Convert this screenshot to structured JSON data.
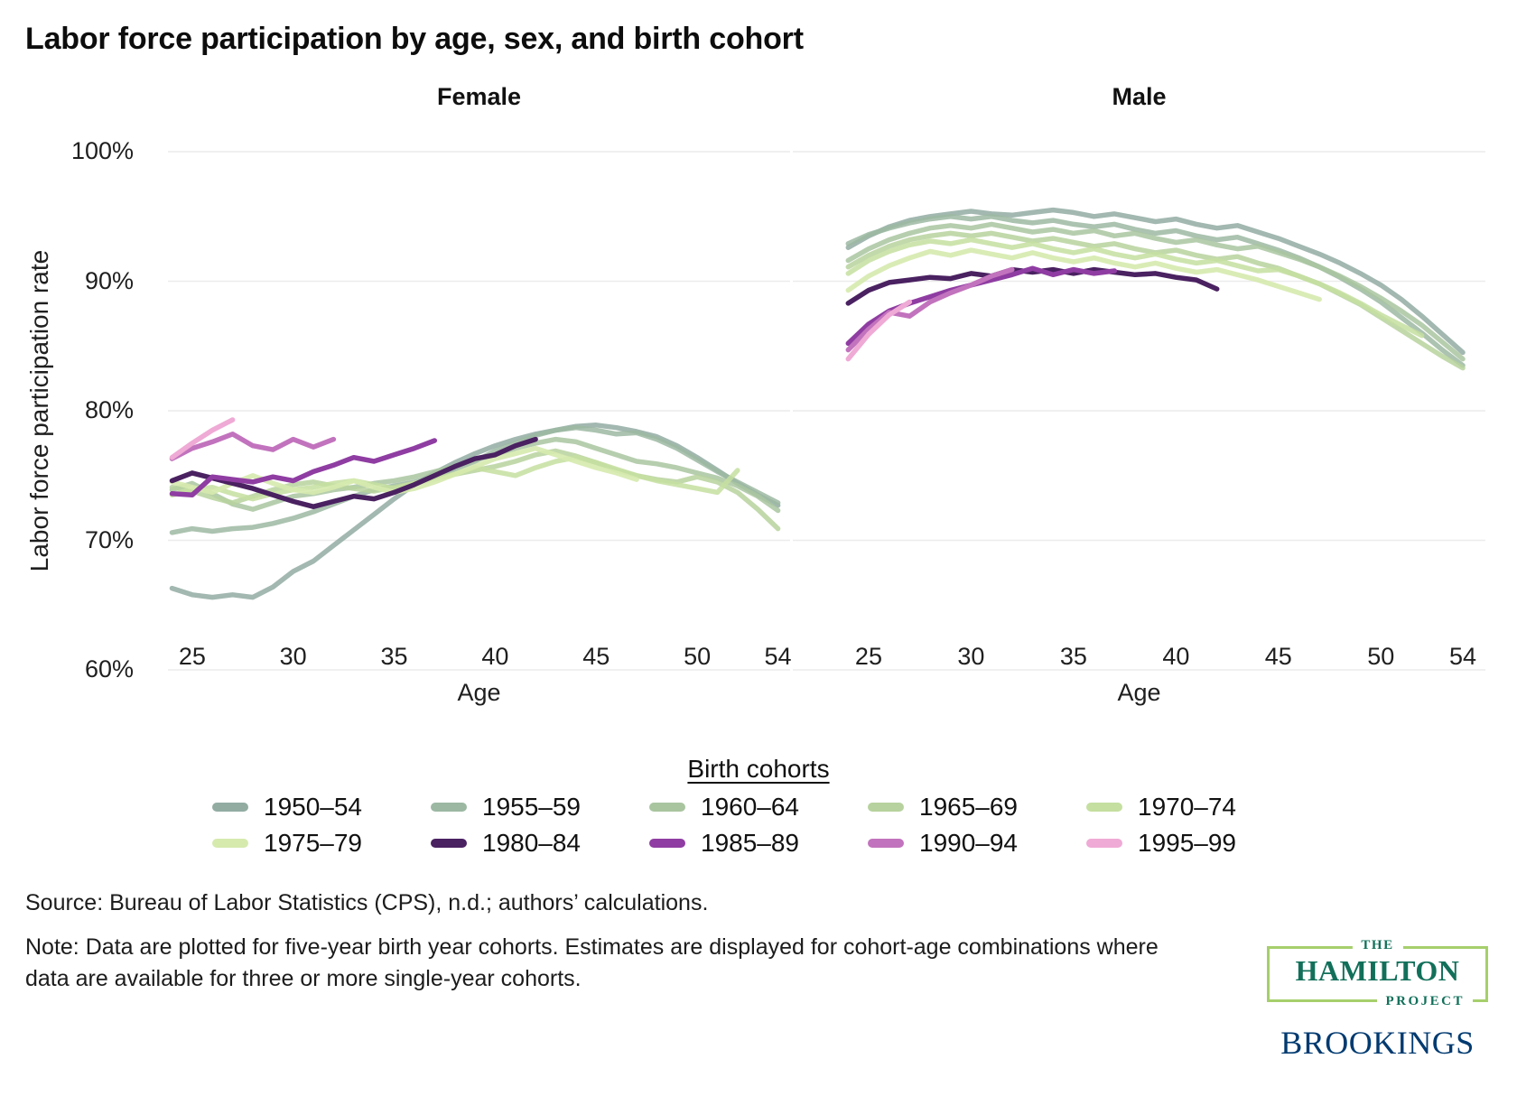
{
  "title": "Labor force participation by age, sex, and birth cohort",
  "y_axis": {
    "label": "Labor force participation rate",
    "tick_labels": [
      "100%",
      "90%",
      "80%",
      "70%",
      "60%"
    ],
    "tick_values": [
      100,
      90,
      80,
      70,
      60
    ]
  },
  "x_axis": {
    "label": "Age",
    "tick_values": [
      25,
      30,
      35,
      40,
      45,
      50,
      54
    ]
  },
  "legend": {
    "title": "Birth cohorts"
  },
  "cohorts": [
    {
      "name": "1950–54",
      "color": "#92aca2",
      "opacity": 0.85
    },
    {
      "name": "1955–59",
      "color": "#9cb8a2",
      "opacity": 0.85
    },
    {
      "name": "1960–64",
      "color": "#a9c5a0",
      "opacity": 0.85
    },
    {
      "name": "1965–69",
      "color": "#b7d29e",
      "opacity": 0.85
    },
    {
      "name": "1970–74",
      "color": "#c5dfa0",
      "opacity": 0.85
    },
    {
      "name": "1975–79",
      "color": "#d6eaae",
      "opacity": 0.9
    },
    {
      "name": "1980–84",
      "color": "#4a2161",
      "opacity": 1
    },
    {
      "name": "1985–89",
      "color": "#8f3da2",
      "opacity": 1
    },
    {
      "name": "1990–94",
      "color": "#c273bd",
      "opacity": 1
    },
    {
      "name": "1995–99",
      "color": "#efaad5",
      "opacity": 1
    }
  ],
  "chart_data": {
    "type": "line",
    "title": "Labor force participation by age, sex, and birth cohort",
    "xlabel": "Age",
    "ylabel": "Labor force participation rate",
    "ylim": [
      60,
      100
    ],
    "grid": true,
    "legend_position": "bottom",
    "panels": [
      {
        "title": "Female",
        "xlim": [
          23.8,
          54.6
        ],
        "series": [
          {
            "name": "1950–54",
            "start_age": 24,
            "values": [
              66.3,
              65.8,
              65.6,
              65.8,
              65.6,
              66.4,
              67.6,
              68.4,
              69.6,
              70.8,
              72.0,
              73.2,
              74.3,
              75.2,
              76.0,
              76.7,
              77.3,
              77.8,
              78.2,
              78.5,
              78.8,
              78.9,
              78.7,
              78.4,
              78.0,
              77.3,
              76.4,
              75.4,
              74.4,
              73.5,
              72.7
            ]
          },
          {
            "name": "1955–59",
            "start_age": 24,
            "values": [
              70.6,
              70.9,
              70.7,
              70.9,
              71.0,
              71.3,
              71.7,
              72.2,
              72.8,
              73.4,
              73.9,
              74.2,
              74.5,
              74.9,
              75.5,
              76.1,
              76.9,
              77.5,
              78.1,
              78.5,
              78.7,
              78.5,
              78.2,
              78.3,
              77.8,
              77.1,
              76.2,
              75.3,
              74.5,
              73.7,
              72.9
            ]
          },
          {
            "name": "1960–64",
            "start_age": 24,
            "values": [
              73.9,
              74.4,
              73.6,
              72.8,
              72.4,
              72.9,
              73.4,
              73.6,
              73.9,
              74.1,
              74.4,
              74.6,
              74.9,
              75.3,
              75.7,
              76.2,
              76.6,
              77.1,
              77.5,
              77.8,
              77.6,
              77.1,
              76.6,
              76.1,
              75.9,
              75.6,
              75.2,
              74.8,
              74.2,
              73.4,
              72.3
            ]
          },
          {
            "name": "1965–69",
            "start_age": 24,
            "values": [
              74.1,
              73.8,
              73.3,
              72.9,
              73.4,
              73.9,
              74.3,
              74.5,
              74.2,
              74.0,
              73.8,
              74.1,
              74.4,
              74.8,
              75.1,
              75.4,
              75.7,
              76.1,
              76.6,
              76.9,
              76.5,
              76.0,
              75.4,
              75.0,
              74.7,
              74.5,
              74.9,
              74.5,
              73.7,
              72.4,
              70.9
            ]
          },
          {
            "name": "1970–74",
            "start_age": 24,
            "values": [
              73.5,
              73.9,
              74.1,
              73.6,
              73.2,
              73.6,
              73.9,
              74.1,
              74.4,
              74.6,
              74.3,
              74.0,
              74.4,
              74.7,
              75.1,
              75.6,
              75.3,
              75.0,
              75.6,
              76.1,
              76.4,
              76.0,
              75.5,
              75.0,
              74.6,
              74.3,
              74.0,
              73.7,
              75.4
            ]
          },
          {
            "name": "1975–79",
            "start_age": 24,
            "values": [
              74.5,
              74.1,
              73.7,
              74.4,
              75.0,
              74.4,
              73.9,
              73.7,
              74.1,
              74.6,
              74.1,
              73.7,
              74.0,
              74.5,
              75.1,
              75.7,
              76.3,
              76.7,
              77.1,
              76.6,
              76.1,
              75.6,
              75.2,
              74.7
            ]
          },
          {
            "name": "1980–84",
            "start_age": 24,
            "values": [
              74.6,
              75.2,
              74.8,
              74.4,
              74.0,
              73.5,
              73.0,
              72.6,
              73.0,
              73.4,
              73.2,
              73.7,
              74.3,
              75.0,
              75.7,
              76.3,
              76.6,
              77.3,
              77.8
            ]
          },
          {
            "name": "1985–89",
            "start_age": 24,
            "values": [
              73.6,
              73.5,
              74.9,
              74.7,
              74.5,
              74.9,
              74.6,
              75.3,
              75.8,
              76.4,
              76.1,
              76.6,
              77.1,
              77.7
            ]
          },
          {
            "name": "1990–94",
            "start_age": 24,
            "values": [
              76.3,
              77.1,
              77.6,
              78.2,
              77.3,
              77.0,
              77.8,
              77.2,
              77.8
            ]
          },
          {
            "name": "1995–99",
            "start_age": 24,
            "values": [
              76.4,
              77.5,
              78.5,
              79.3
            ]
          }
        ]
      },
      {
        "title": "Male",
        "xlim": [
          21.3,
          55.1
        ],
        "series": [
          {
            "name": "1950–54",
            "start_age": 24,
            "values": [
              92.6,
              93.5,
              94.2,
              94.7,
              95.0,
              95.2,
              95.4,
              95.2,
              95.1,
              95.3,
              95.5,
              95.3,
              95.0,
              95.2,
              94.9,
              94.6,
              94.8,
              94.4,
              94.1,
              94.3,
              93.8,
              93.3,
              92.7,
              92.1,
              91.4,
              90.6,
              89.7,
              88.6,
              87.3,
              85.9,
              84.5
            ]
          },
          {
            "name": "1955–59",
            "start_age": 24,
            "values": [
              92.9,
              93.6,
              94.1,
              94.5,
              94.8,
              95.0,
              94.8,
              95.0,
              94.7,
              94.5,
              94.7,
              94.4,
              94.2,
              94.4,
              94.0,
              93.7,
              93.9,
              93.5,
              93.2,
              93.4,
              92.9,
              92.4,
              91.8,
              91.1,
              90.3,
              89.4,
              88.4,
              87.2,
              86.0,
              84.7,
              83.5
            ]
          },
          {
            "name": "1960–64",
            "start_age": 24,
            "values": [
              91.6,
              92.5,
              93.2,
              93.7,
              94.1,
              94.3,
              94.1,
              94.4,
              94.1,
              93.8,
              94.0,
              93.7,
              93.9,
              93.5,
              93.7,
              93.3,
              93.0,
              93.2,
              92.8,
              92.5,
              92.7,
              92.2,
              91.7,
              91.1,
              90.4,
              89.6,
              88.7,
              87.7,
              86.6,
              85.3,
              84.0
            ]
          },
          {
            "name": "1965–69",
            "start_age": 24,
            "values": [
              91.1,
              92.0,
              92.7,
              93.2,
              93.5,
              93.7,
              93.5,
              93.7,
              93.4,
              93.1,
              93.3,
              93.0,
              92.7,
              92.9,
              92.5,
              92.2,
              92.4,
              92.0,
              91.7,
              91.9,
              91.4,
              91.0,
              90.4,
              89.8,
              89.0,
              88.2,
              87.2,
              86.2,
              85.2,
              84.2,
              83.3
            ]
          },
          {
            "name": "1970–74",
            "start_age": 24,
            "values": [
              90.6,
              91.6,
              92.3,
              92.8,
              93.1,
              92.9,
              93.2,
              92.9,
              92.6,
              92.9,
              92.5,
              92.2,
              92.5,
              92.1,
              91.8,
              92.1,
              91.7,
              91.4,
              91.6,
              91.2,
              90.8,
              90.9,
              90.4,
              89.8,
              89.1,
              88.3,
              87.4,
              86.6,
              85.8
            ]
          },
          {
            "name": "1975–79",
            "start_age": 24,
            "values": [
              89.3,
              90.4,
              91.2,
              91.8,
              92.3,
              92.0,
              92.4,
              92.1,
              91.8,
              92.2,
              91.8,
              91.5,
              91.8,
              91.4,
              91.1,
              91.4,
              91.0,
              90.7,
              90.9,
              90.5,
              90.1,
              89.6,
              89.1,
              88.6
            ]
          },
          {
            "name": "1980–84",
            "start_age": 24,
            "values": [
              88.3,
              89.3,
              89.9,
              90.1,
              90.3,
              90.2,
              90.6,
              90.4,
              90.9,
              90.7,
              90.9,
              90.6,
              90.9,
              90.7,
              90.5,
              90.6,
              90.3,
              90.1,
              89.4
            ]
          },
          {
            "name": "1985–89",
            "start_age": 24,
            "values": [
              85.2,
              86.7,
              87.7,
              88.3,
              88.8,
              89.3,
              89.7,
              90.1,
              90.5,
              91.0,
              90.5,
              90.9,
              90.6,
              90.8
            ]
          },
          {
            "name": "1990–94",
            "start_age": 24,
            "values": [
              84.7,
              86.3,
              87.6,
              87.3,
              88.4,
              89.1,
              89.7,
              90.4,
              90.9
            ]
          },
          {
            "name": "1995–99",
            "start_age": 24,
            "values": [
              84.0,
              85.9,
              87.4,
              88.4
            ]
          }
        ]
      }
    ]
  },
  "source": "Source: Bureau of Labor Statistics (CPS), n.d.; authors’ calculations.",
  "note": "Note: Data are plotted for five-year birth year cohorts. Estimates are displayed for cohort-age combinations where data are available for three or more single-year cohorts.",
  "logos": {
    "hamilton": {
      "the": "THE",
      "name": "HAMILTON",
      "project": "PROJECT"
    },
    "brookings": "BROOKINGS"
  },
  "colors": {
    "gridline": "#ececec",
    "hamilton_green": "#12705a",
    "hamilton_border": "#a6cf6b",
    "brookings_navy": "#003a70"
  }
}
